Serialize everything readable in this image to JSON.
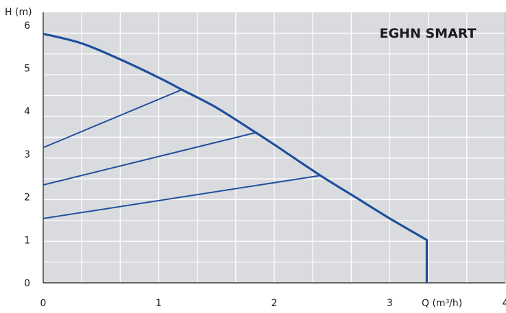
{
  "chart_data": {
    "type": "line",
    "title": "EGHN SMART",
    "xlabel": "Q (m³/h)",
    "ylabel": "H (m)",
    "xlim": [
      0,
      4
    ],
    "ylim": [
      0,
      6.3
    ],
    "x_ticks": [
      "0",
      "1",
      "2",
      "3",
      "4"
    ],
    "y_ticks": [
      "0",
      "1",
      "2",
      "3",
      "4",
      "5",
      "6"
    ],
    "grid": true,
    "background": "#d9dbdf",
    "series": [
      {
        "style": "max-curve",
        "x": [
          0.0,
          0.33,
          0.67,
          1.0,
          1.2,
          1.5,
          1.84,
          2.0,
          2.4,
          2.7,
          3.0,
          3.32,
          3.32
        ],
        "y": [
          5.8,
          5.58,
          5.2,
          4.78,
          4.5,
          4.08,
          3.5,
          3.22,
          2.5,
          2.0,
          1.5,
          1.0,
          0.0
        ]
      },
      {
        "style": "control-line",
        "x": [
          0.0,
          1.2
        ],
        "y": [
          3.15,
          4.5
        ]
      },
      {
        "style": "control-line",
        "x": [
          0.0,
          1.84
        ],
        "y": [
          2.28,
          3.5
        ]
      },
      {
        "style": "control-line",
        "x": [
          0.0,
          2.4
        ],
        "y": [
          1.5,
          2.5
        ]
      }
    ],
    "colors": {
      "curve": "#1e4f9c",
      "grid": "#ffffff",
      "axis": "#1a1a1a",
      "title": "#1e4f9c"
    }
  }
}
